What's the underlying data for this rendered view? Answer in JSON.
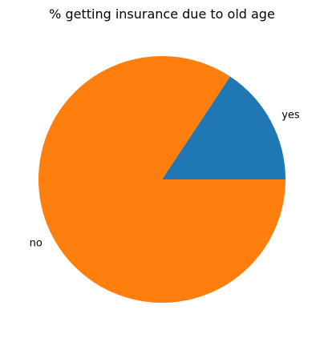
{
  "chart_data": {
    "type": "pie",
    "title": "% getting insurance due to old age",
    "categories": [
      "yes",
      "no"
    ],
    "values": [
      15.7,
      84.3
    ],
    "colors": [
      "#1f77b4",
      "#ff7f0e"
    ],
    "start_angle_deg": 0,
    "direction": "counterclockwise"
  }
}
